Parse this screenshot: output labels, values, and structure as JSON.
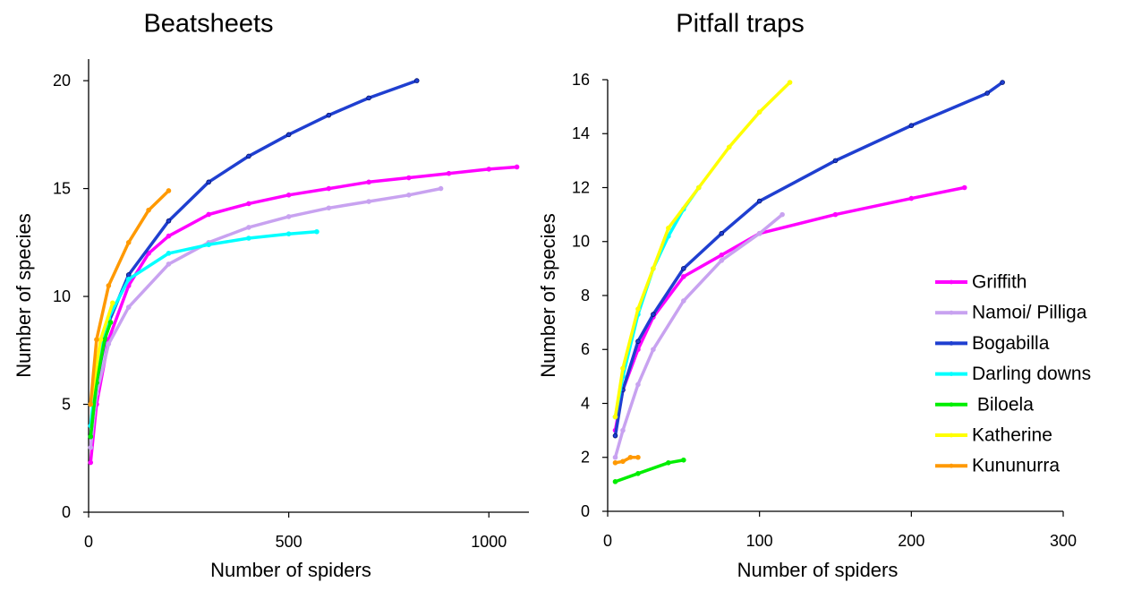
{
  "chart_data": [
    {
      "type": "line",
      "title": "Beatsheets",
      "xlabel": "Number of spiders",
      "ylabel": "Number of species",
      "xlim": [
        0,
        1100
      ],
      "ylim": [
        0,
        21
      ],
      "xticks": [
        0,
        500,
        1000
      ],
      "yticks": [
        0,
        5,
        10,
        15,
        20
      ],
      "series": [
        {
          "color": "#ff00ff",
          "x": [
            5,
            20,
            50,
            100,
            150,
            200,
            300,
            400,
            500,
            600,
            700,
            800,
            900,
            1000,
            1070
          ],
          "values": [
            2.3,
            5,
            8,
            10.5,
            12,
            12.8,
            13.8,
            14.3,
            14.7,
            15,
            15.3,
            15.5,
            15.7,
            15.9,
            16
          ]
        },
        {
          "color": "#c8a2f0",
          "x": [
            5,
            20,
            50,
            100,
            200,
            300,
            400,
            500,
            600,
            700,
            800,
            880
          ],
          "values": [
            3,
            5.5,
            7.8,
            9.5,
            11.5,
            12.5,
            13.2,
            13.7,
            14.1,
            14.4,
            14.7,
            15
          ]
        },
        {
          "color": "#1f3fd0",
          "x": [
            5,
            20,
            50,
            100,
            200,
            300,
            400,
            500,
            600,
            700,
            820
          ],
          "values": [
            3.5,
            6,
            8.8,
            11,
            13.5,
            15.3,
            16.5,
            17.5,
            18.4,
            19.2,
            20
          ]
        },
        {
          "color": "#00ffff",
          "x": [
            5,
            20,
            50,
            100,
            200,
            300,
            400,
            500,
            570
          ],
          "values": [
            4,
            6.5,
            9,
            10.8,
            12,
            12.4,
            12.7,
            12.9,
            13
          ]
        },
        {
          "color": "#00ee00",
          "x": [
            5,
            20,
            40,
            55
          ],
          "values": [
            3.5,
            6,
            8,
            8.8
          ]
        },
        {
          "color": "#ffff00",
          "x": [
            5,
            30,
            60
          ],
          "values": [
            5,
            8,
            9.7
          ]
        },
        {
          "color": "#ff9900",
          "x": [
            5,
            20,
            50,
            100,
            150,
            200
          ],
          "values": [
            5,
            8,
            10.5,
            12.5,
            14,
            14.9
          ]
        }
      ]
    },
    {
      "type": "line",
      "title": "Pitfall traps",
      "xlabel": "Number of spiders",
      "ylabel": "Number of species",
      "xlim": [
        0,
        300
      ],
      "ylim": [
        0,
        16
      ],
      "xticks": [
        0,
        100,
        200,
        300
      ],
      "yticks": [
        0,
        2,
        4,
        6,
        8,
        10,
        12,
        14,
        16
      ],
      "legend": "center right",
      "series": [
        {
          "name": "Griffith",
          "color": "#ff00ff",
          "x": [
            5,
            10,
            20,
            30,
            50,
            75,
            100,
            150,
            200,
            235
          ],
          "values": [
            3,
            4.5,
            6,
            7.2,
            8.7,
            9.5,
            10.3,
            11,
            11.6,
            12
          ]
        },
        {
          "name": "Namoi/ Pilliga",
          "color": "#c8a2f0",
          "x": [
            5,
            10,
            20,
            30,
            50,
            75,
            100,
            115
          ],
          "values": [
            2,
            3,
            4.7,
            6,
            7.8,
            9.3,
            10.3,
            11
          ]
        },
        {
          "name": "Bogabilla",
          "color": "#1f3fd0",
          "x": [
            5,
            10,
            20,
            30,
            50,
            75,
            100,
            150,
            200,
            250,
            260
          ],
          "values": [
            2.8,
            4.5,
            6.3,
            7.3,
            9,
            10.3,
            11.5,
            13,
            14.3,
            15.5,
            15.9
          ]
        },
        {
          "name": "Darling downs",
          "color": "#00ffff",
          "x": [
            5,
            10,
            20,
            30,
            40,
            50,
            60
          ],
          "values": [
            3.5,
            5,
            7.3,
            9,
            10.2,
            11.2,
            12
          ]
        },
        {
          "name": " Biloela",
          "color": "#00ee00",
          "x": [
            5,
            20,
            40,
            50
          ],
          "values": [
            1.1,
            1.4,
            1.8,
            1.9
          ]
        },
        {
          "name": "Katherine",
          "color": "#ffff00",
          "x": [
            5,
            10,
            20,
            30,
            40,
            60,
            80,
            100,
            120
          ],
          "values": [
            3.5,
            5.3,
            7.5,
            9,
            10.5,
            12,
            13.5,
            14.8,
            15.9
          ]
        },
        {
          "name": "Kununurra",
          "color": "#ff9900",
          "x": [
            5,
            10,
            15,
            20
          ],
          "values": [
            1.8,
            1.85,
            2,
            2
          ]
        }
      ]
    }
  ]
}
